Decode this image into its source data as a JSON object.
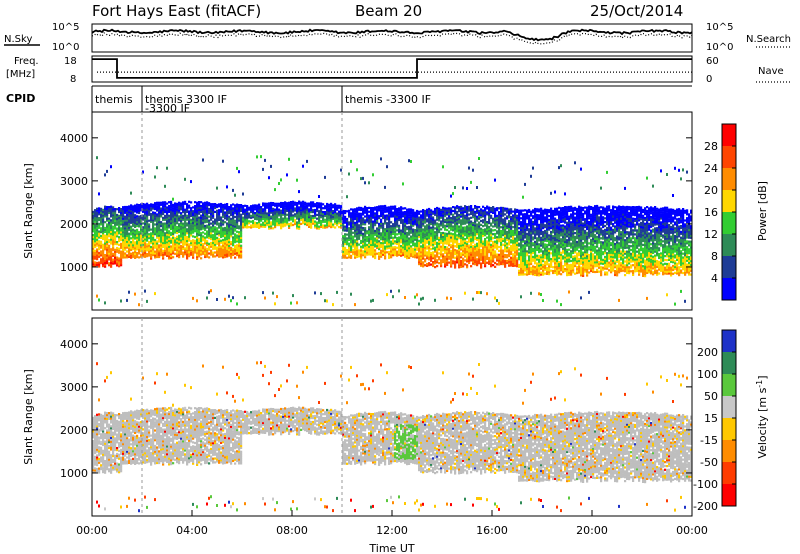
{
  "header": {
    "station": "Fort Hays East (fitACF)",
    "beam": "Beam 20",
    "date": "25/Oct/2014"
  },
  "top_panels": {
    "nsky_label": "N.Sky",
    "nsky_ticks": [
      "10^5",
      "10^0"
    ],
    "nsearch_label": "N.Search",
    "nsearch_ticks": [
      "10^5",
      "10^0"
    ],
    "freq_label": "Freq.",
    "freq_unit": "[MHz]",
    "freq_ticks": [
      "18",
      "8"
    ],
    "nave_label": "Nave",
    "nave_ticks": [
      "60",
      "0"
    ],
    "cpid_label": "CPID",
    "cpid_segments": [
      {
        "start_hour": 0.0,
        "line1": "themis",
        "line2": ""
      },
      {
        "start_hour": 2.0,
        "line1": "themis 3300 IF",
        "line2": "-3300 IF"
      },
      {
        "start_hour": 10.0,
        "line1": "themis -3300 IF",
        "line2": ""
      }
    ]
  },
  "colors": {
    "power": [
      "#0000ff",
      "#1e3c96",
      "#2e8b57",
      "#32cd32",
      "#ffd700",
      "#ff8c00",
      "#ff4500",
      "#ff0000"
    ],
    "velocity": [
      "#1e32c8",
      "#2e8b57",
      "#5ac83c",
      "#c8c8c8",
      "#ffc800",
      "#ff8c00",
      "#ff3c00",
      "#ff0000"
    ],
    "ground_scatter": "#bebebe"
  },
  "chart_data": [
    {
      "type": "heatmap",
      "name": "power",
      "xlabel": "",
      "ylabel": "Slant Range [km]",
      "xlim_hours": [
        0,
        24
      ],
      "ylim_km": [
        0,
        4600
      ],
      "yticks": [
        "1000",
        "2000",
        "3000",
        "4000"
      ],
      "colorbar_label": "Power [dB]",
      "colorbar_ticks": [
        "4",
        "8",
        "12",
        "16",
        "20",
        "24",
        "28"
      ],
      "colorbar_range": [
        0,
        30
      ],
      "dashed_lines_hours": [
        2.0,
        10.0
      ],
      "scatter_bands": [
        {
          "t0": 0.0,
          "t1": 1.2,
          "r_low": 1000,
          "r_high": 2300,
          "level_db": 26
        },
        {
          "t0": 1.2,
          "t1": 6.0,
          "r_low": 1200,
          "r_high": 2400,
          "level_db": 22
        },
        {
          "t0": 6.0,
          "t1": 10.0,
          "r_low": 1900,
          "r_high": 2400,
          "level_db": 18
        },
        {
          "t0": 10.0,
          "t1": 13.0,
          "r_low": 1200,
          "r_high": 2300,
          "level_db": 20
        },
        {
          "t0": 13.0,
          "t1": 17.0,
          "r_low": 1000,
          "r_high": 2300,
          "level_db": 24
        },
        {
          "t0": 17.0,
          "t1": 24.0,
          "r_low": 800,
          "r_high": 2300,
          "level_db": 20
        }
      ]
    },
    {
      "type": "heatmap",
      "name": "velocity",
      "xlabel": "Time UT",
      "ylabel": "Slant Range [km]",
      "xlim_hours": [
        0,
        24
      ],
      "ylim_km": [
        0,
        4600
      ],
      "yticks": [
        "1000",
        "2000",
        "3000",
        "4000"
      ],
      "xticks": [
        "00:00",
        "04:00",
        "08:00",
        "12:00",
        "16:00",
        "20:00",
        "00:00"
      ],
      "colorbar_label": "Velocity [m s^-1]",
      "colorbar_ticks": [
        "200",
        "100",
        "50",
        "15",
        "-15",
        "-50",
        "-100",
        "-200"
      ],
      "dashed_lines_hours": [
        2.0,
        10.0
      ]
    }
  ]
}
